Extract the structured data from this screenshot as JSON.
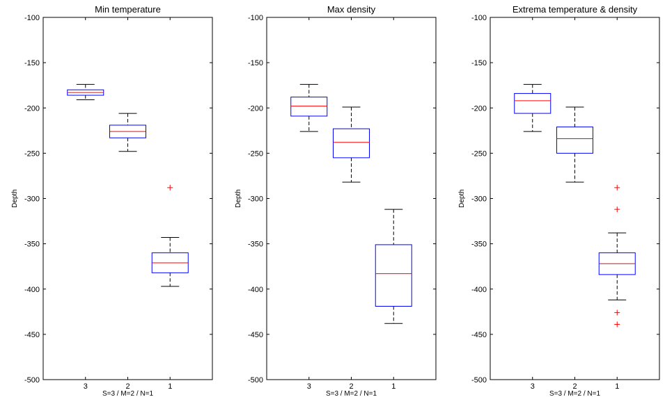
{
  "chart_data": [
    {
      "type": "boxplot",
      "title": "Min temperature",
      "xlabel": "S=3 / M=2 / N=1",
      "ylabel": "Depth",
      "ylim": [
        -500,
        -100
      ],
      "yticks": [
        -100,
        -150,
        -200,
        -250,
        -300,
        -350,
        -400,
        -450,
        -500
      ],
      "categories": [
        "3",
        "2",
        "1"
      ],
      "boxes": [
        {
          "whisker_high": -174,
          "q3": -180,
          "median": -183,
          "q1": -186,
          "whisker_low": -191,
          "outliers": []
        },
        {
          "whisker_high": -206,
          "q3": -219,
          "median": -226,
          "q1": -233,
          "whisker_low": -248,
          "outliers": []
        },
        {
          "whisker_high": -343,
          "q3": -360,
          "median": -371,
          "q1": -382,
          "whisker_low": -397,
          "outliers": [
            -288
          ]
        }
      ],
      "colors": {
        "box": "#0000ff",
        "median": "#ff0000",
        "whisker": "#000000",
        "outlier": "#ff0000"
      }
    },
    {
      "type": "boxplot",
      "title": "Max density",
      "xlabel": "S=3 / M=2 / N=1",
      "ylabel": "Depth",
      "ylim": [
        -500,
        -100
      ],
      "yticks": [
        -100,
        -150,
        -200,
        -250,
        -300,
        -350,
        -400,
        -450,
        -500
      ],
      "categories": [
        "3",
        "2",
        "1"
      ],
      "boxes": [
        {
          "whisker_high": -174,
          "q3": -188,
          "median": -198,
          "q1": -209,
          "whisker_low": -226,
          "outliers": []
        },
        {
          "whisker_high": -199,
          "q3": -223,
          "median": -238,
          "q1": -255,
          "whisker_low": -282,
          "outliers": []
        },
        {
          "whisker_high": -312,
          "q3": -351,
          "median": -383,
          "q1": -419,
          "whisker_low": -438,
          "outliers": []
        }
      ],
      "colors": {
        "box": "#0000ff",
        "median": "#ff0000",
        "whisker": "#000000",
        "outlier": "#ff0000"
      }
    },
    {
      "type": "boxplot",
      "title": "Extrema temperature & density",
      "xlabel": "S=3 / M=2 / N=1",
      "ylabel": "Depth",
      "ylim": [
        -500,
        -100
      ],
      "yticks": [
        -100,
        -150,
        -200,
        -250,
        -300,
        -350,
        -400,
        -450,
        -500
      ],
      "categories": [
        "3",
        "2",
        "1"
      ],
      "boxes": [
        {
          "whisker_high": -174,
          "q3": -184,
          "median": -192,
          "q1": -206,
          "whisker_low": -226,
          "outliers": []
        },
        {
          "whisker_high": -199,
          "q3": -221,
          "median": -234,
          "q1": -250,
          "whisker_low": -282,
          "outliers": []
        },
        {
          "whisker_high": -338,
          "q3": -360,
          "median": -372,
          "q1": -384,
          "whisker_low": -412,
          "outliers": [
            -288,
            -312,
            -426,
            -439
          ]
        }
      ],
      "colors": {
        "box": "#0000ff",
        "median": "#ff0000",
        "whisker": "#000000",
        "outlier": "#ff0000"
      }
    }
  ]
}
